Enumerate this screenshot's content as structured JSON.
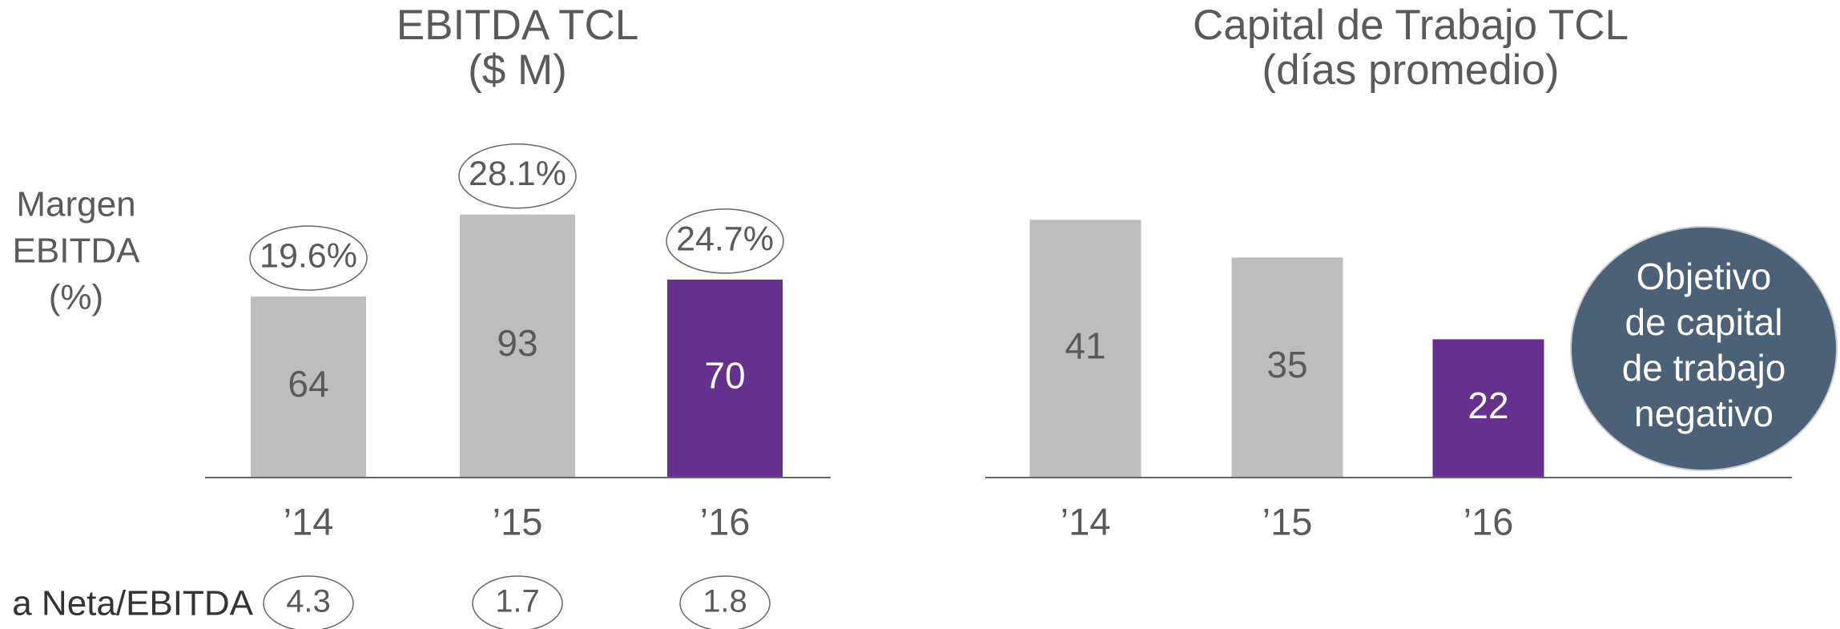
{
  "chart_data": [
    {
      "type": "bar",
      "title": "EBITDA TCL",
      "subtitle": "($ M)",
      "categories": [
        "’14",
        "’15",
        "’16"
      ],
      "values": [
        64,
        93,
        70
      ],
      "colors": [
        "#bdbdbd",
        "#bdbdbd",
        "#66308f"
      ],
      "ylim": [
        0,
        100
      ],
      "margin": {
        "label": [
          "Margen",
          "EBITDA",
          "(%)"
        ],
        "values": [
          19.6,
          28.1,
          24.7
        ],
        "value_labels": [
          "19.6%",
          "28.1%",
          "24.7%"
        ]
      },
      "ratio": {
        "label": "a Neta/EBITDA",
        "values": [
          4.3,
          1.7,
          1.8
        ]
      }
    },
    {
      "type": "bar",
      "title": "Capital de Trabajo TCL",
      "subtitle": "(días promedio)",
      "categories": [
        "’14",
        "’15",
        "’16"
      ],
      "values": [
        41,
        35,
        22
      ],
      "colors": [
        "#bdbdbd",
        "#bdbdbd",
        "#66308f"
      ],
      "ylim": [
        0,
        45
      ],
      "annotation": [
        "Objetivo",
        "de capital",
        "de trabajo",
        "negativo"
      ]
    }
  ]
}
